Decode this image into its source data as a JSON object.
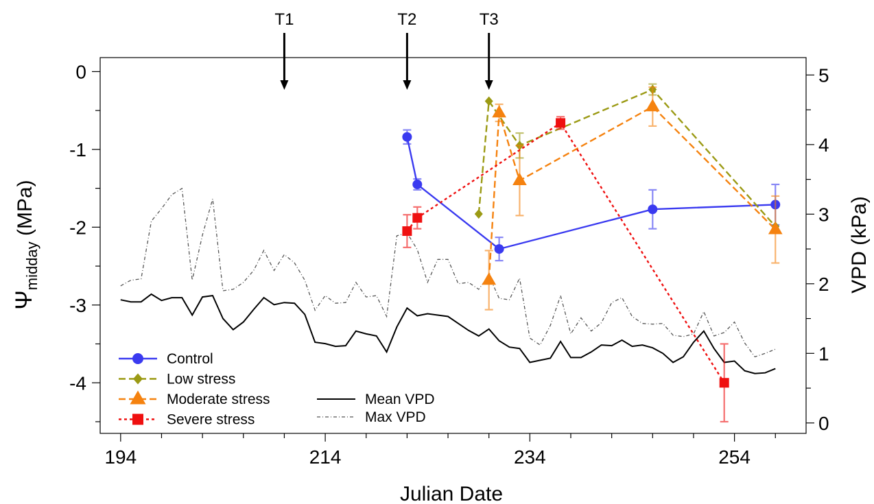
{
  "chart_data": {
    "type": "line",
    "title": "",
    "xlabel": "Julian Date",
    "ylabel_main": "Ψ",
    "ylabel_sub": "midday",
    "ylabel_unit": " (MPa)",
    "y2label": "VPD (kPa)",
    "xlim": [
      192,
      261
    ],
    "ylim": [
      -4.65,
      0.18
    ],
    "y2lim": [
      -0.15,
      5.25
    ],
    "x_ticks": [
      194,
      214,
      234,
      254
    ],
    "y_ticks": [
      0,
      -1,
      -2,
      -3,
      -4
    ],
    "y_ticklabels": [
      "0",
      "-1",
      "-2",
      "-3",
      "-4"
    ],
    "y2_ticks": [
      0,
      1,
      2,
      3,
      4,
      5
    ],
    "grid": false,
    "legend_position": "bottom-left",
    "annotations": [
      {
        "label": "T1",
        "x": 210
      },
      {
        "label": "T2",
        "x": 222
      },
      {
        "label": "T3",
        "x": 230
      }
    ],
    "series": [
      {
        "name": "Control",
        "axis": "left",
        "color": "#3a3af0",
        "marker": "circle",
        "dash": "solid",
        "x": [
          222,
          223,
          231,
          246,
          258
        ],
        "y": [
          -0.84,
          -1.45,
          -2.28,
          -1.77,
          -1.71
        ],
        "err": [
          0.09,
          0.07,
          0.15,
          0.25,
          0.26
        ]
      },
      {
        "name": "Low stress",
        "axis": "left",
        "color": "#9b9a14",
        "marker": "diamond",
        "dash": "longdash",
        "x": [
          229,
          230,
          233,
          246,
          258
        ],
        "y": [
          -1.83,
          -0.38,
          -0.95,
          -0.23,
          -1.99
        ],
        "err": [
          0,
          0,
          0.16,
          0.07,
          0
        ]
      },
      {
        "name": "Moderate stress",
        "axis": "left",
        "color": "#f5820f",
        "marker": "triangle",
        "dash": "longdash",
        "x": [
          230,
          231,
          233,
          246,
          258
        ],
        "y": [
          -2.68,
          -0.53,
          -1.4,
          -0.45,
          -2.03
        ],
        "err": [
          0.38,
          0.11,
          0.45,
          0.25,
          0.43
        ]
      },
      {
        "name": "Severe stress",
        "axis": "left",
        "color": "#ef1010",
        "marker": "square",
        "dash": "dotted",
        "x": [
          222,
          223,
          237,
          253
        ],
        "y": [
          -2.05,
          -1.88,
          -0.66,
          -4.0
        ],
        "err": [
          0.21,
          0.14,
          0.08,
          0.5
        ]
      },
      {
        "name": "Mean VPD",
        "axis": "right",
        "color": "#000000",
        "marker": "none",
        "dash": "solid",
        "x": [
          194,
          195,
          196,
          197,
          198,
          199,
          200,
          201,
          202,
          203,
          204,
          205,
          206,
          207,
          208,
          209,
          210,
          211,
          212,
          213,
          214,
          215,
          216,
          217,
          218,
          219,
          220,
          221,
          222,
          223,
          224,
          225,
          226,
          227,
          228,
          229,
          230,
          231,
          232,
          233,
          234,
          235,
          236,
          237,
          238,
          239,
          240,
          241,
          242,
          243,
          244,
          245,
          246,
          247,
          248,
          249,
          250,
          251,
          252,
          253,
          254,
          255,
          256,
          257,
          258
        ],
        "y": [
          1.77,
          1.74,
          1.74,
          1.85,
          1.76,
          1.8,
          1.8,
          1.55,
          1.81,
          1.83,
          1.5,
          1.34,
          1.45,
          1.63,
          1.8,
          1.7,
          1.73,
          1.72,
          1.56,
          1.16,
          1.14,
          1.1,
          1.11,
          1.32,
          1.28,
          1.25,
          1.02,
          1.38,
          1.65,
          1.54,
          1.57,
          1.55,
          1.53,
          1.43,
          1.33,
          1.25,
          1.35,
          1.18,
          1.09,
          1.07,
          0.87,
          0.9,
          0.93,
          1.17,
          0.94,
          0.94,
          1.02,
          1.12,
          1.11,
          1.19,
          1.1,
          1.12,
          1.08,
          1.0,
          0.87,
          0.95,
          1.16,
          1.32,
          1.07,
          0.87,
          0.89,
          0.75,
          0.71,
          0.72,
          0.78
        ]
      },
      {
        "name": "Max VPD",
        "axis": "right",
        "color": "#555555",
        "marker": "none",
        "dash": "dashdot",
        "x": [
          194,
          195,
          196,
          197,
          198,
          199,
          200,
          201,
          202,
          203,
          204,
          205,
          206,
          207,
          208,
          209,
          210,
          211,
          212,
          213,
          214,
          215,
          216,
          217,
          218,
          219,
          220,
          221,
          222,
          223,
          224,
          225,
          226,
          227,
          228,
          229,
          230,
          231,
          232,
          233,
          234,
          235,
          236,
          237,
          238,
          239,
          240,
          241,
          242,
          243,
          244,
          245,
          246,
          247,
          248,
          249,
          250,
          251,
          252,
          253,
          254,
          255,
          256,
          257,
          258
        ],
        "y": [
          1.97,
          2.05,
          2.07,
          2.9,
          3.08,
          3.28,
          3.37,
          2.05,
          2.7,
          3.22,
          1.9,
          1.92,
          2.02,
          2.19,
          2.48,
          2.19,
          2.42,
          2.3,
          2.05,
          1.62,
          1.83,
          1.72,
          1.73,
          2.02,
          1.81,
          1.83,
          1.53,
          2.69,
          2.73,
          2.49,
          2.02,
          2.35,
          2.35,
          2.0,
          2.02,
          1.92,
          2.12,
          1.79,
          1.77,
          2.08,
          1.22,
          1.12,
          1.4,
          1.83,
          1.28,
          1.51,
          1.32,
          1.44,
          1.73,
          1.8,
          1.53,
          1.43,
          1.42,
          1.43,
          1.26,
          1.24,
          1.28,
          1.6,
          1.25,
          1.3,
          1.45,
          1.15,
          0.95,
          1.0,
          1.06
        ]
      }
    ]
  }
}
